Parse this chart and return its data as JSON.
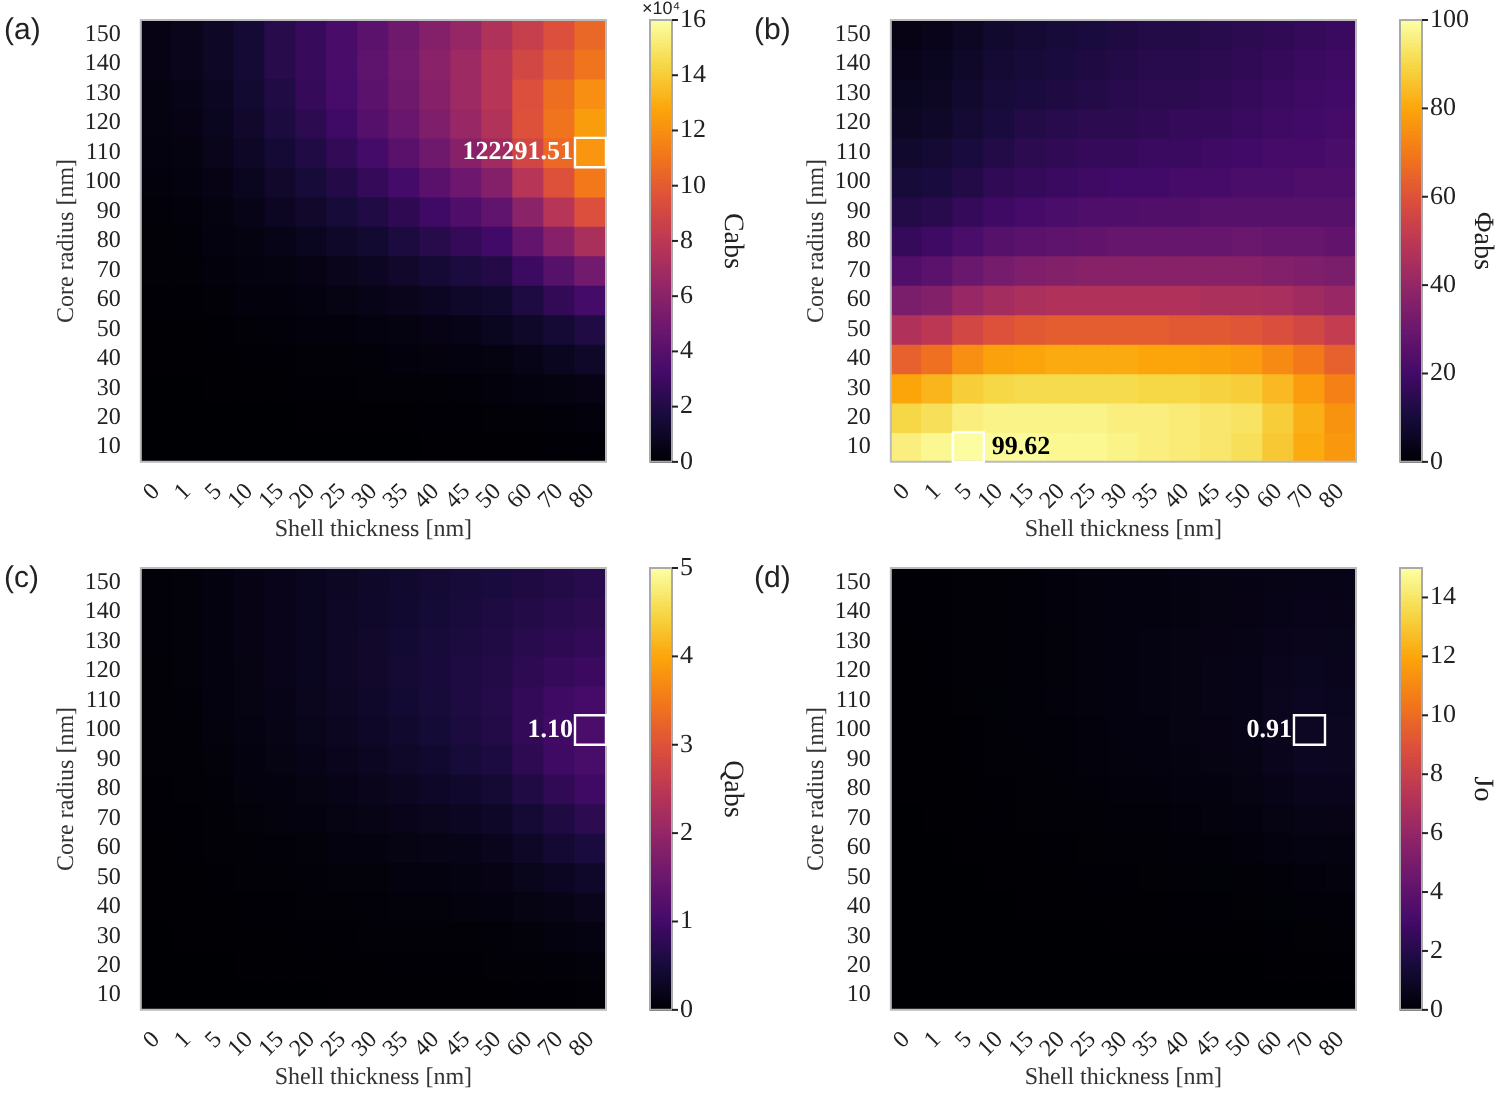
{
  "chart_data": [
    {
      "type": "heatmap",
      "title": "(a)",
      "xlabel": "Shell thickness [nm]",
      "ylabel": "Core radius [nm]",
      "clabel": "Cabs",
      "categories": [
        "0",
        "1",
        "5",
        "10",
        "15",
        "20",
        "25",
        "30",
        "35",
        "40",
        "45",
        "50",
        "60",
        "70",
        "80"
      ],
      "y_categories": [
        "150",
        "140",
        "130",
        "120",
        "110",
        "100",
        "90",
        "80",
        "70",
        "60",
        "50",
        "40",
        "30",
        "20",
        "10"
      ],
      "cells": [
        [
          0.5,
          0.7,
          1,
          1.5,
          2.2,
          2.8,
          3.5,
          4.2,
          5,
          5.8,
          6.5,
          7.5,
          8.5,
          9.5,
          10.5
        ],
        [
          0.5,
          0.7,
          1,
          1.5,
          2.2,
          2.8,
          3.5,
          4.3,
          5.1,
          6,
          6.8,
          7.8,
          9,
          10,
          11
        ],
        [
          0.4,
          0.6,
          0.9,
          1.4,
          2,
          2.7,
          3.4,
          4.2,
          5,
          5.9,
          6.8,
          7.8,
          9.5,
          10.8,
          12
        ],
        [
          0.4,
          0.5,
          0.8,
          1.2,
          1.8,
          2.4,
          3.1,
          3.9,
          4.7,
          5.6,
          6.6,
          7.6,
          9.6,
          11,
          12.5
        ],
        [
          0.3,
          0.4,
          0.7,
          1,
          1.5,
          2,
          2.6,
          3.3,
          4.1,
          5,
          5.9,
          6.9,
          8.9,
          10.6,
          12.229151
        ],
        [
          0.2,
          0.3,
          0.5,
          0.8,
          1.2,
          1.6,
          2.1,
          2.7,
          3.3,
          4.1,
          4.9,
          5.8,
          7.8,
          9.6,
          11.2
        ],
        [
          0.15,
          0.2,
          0.4,
          0.6,
          0.9,
          1.2,
          1.6,
          2,
          2.5,
          3.1,
          3.7,
          4.4,
          6.1,
          7.8,
          9.5
        ],
        [
          0.1,
          0.15,
          0.3,
          0.4,
          0.6,
          0.8,
          1.1,
          1.4,
          1.8,
          2.2,
          2.7,
          3.2,
          4.5,
          5.9,
          7.3
        ],
        [
          0.08,
          0.1,
          0.2,
          0.3,
          0.4,
          0.5,
          0.7,
          0.9,
          1.2,
          1.5,
          1.8,
          2.1,
          3,
          4,
          5.1
        ],
        [
          0.05,
          0.07,
          0.1,
          0.2,
          0.25,
          0.35,
          0.45,
          0.6,
          0.7,
          0.9,
          1.1,
          1.3,
          1.9,
          2.6,
          3.3
        ],
        [
          0.03,
          0.04,
          0.06,
          0.1,
          0.15,
          0.2,
          0.25,
          0.35,
          0.4,
          0.5,
          0.6,
          0.8,
          1.1,
          1.5,
          2
        ],
        [
          0.02,
          0.02,
          0.03,
          0.05,
          0.07,
          0.1,
          0.13,
          0.17,
          0.2,
          0.26,
          0.32,
          0.4,
          0.6,
          0.8,
          1.1
        ],
        [
          0.01,
          0.01,
          0.02,
          0.02,
          0.03,
          0.05,
          0.06,
          0.08,
          0.1,
          0.12,
          0.15,
          0.2,
          0.3,
          0.4,
          0.5
        ],
        [
          0,
          0,
          0.01,
          0.01,
          0.01,
          0.02,
          0.02,
          0.03,
          0.04,
          0.05,
          0.06,
          0.08,
          0.12,
          0.16,
          0.2
        ],
        [
          0,
          0,
          0,
          0,
          0,
          0.01,
          0.01,
          0.01,
          0.01,
          0.02,
          0.02,
          0.03,
          0.04,
          0.05,
          0.07
        ]
      ],
      "clim": [
        0,
        16
      ],
      "cticks": [
        0,
        2,
        4,
        6,
        8,
        10,
        12,
        14,
        16
      ],
      "annotations": [
        {
          "text": "122291.51",
          "x": "80",
          "y": "110"
        },
        "×10⁴"
      ]
    },
    {
      "type": "heatmap",
      "title": "(b)",
      "xlabel": "Shell thickness [nm]",
      "ylabel": "Core radius [nm]",
      "clabel": "Φabs",
      "categories": [
        "0",
        "1",
        "5",
        "10",
        "15",
        "20",
        "25",
        "30",
        "35",
        "40",
        "45",
        "50",
        "60",
        "70",
        "80"
      ],
      "y_categories": [
        "150",
        "140",
        "130",
        "120",
        "110",
        "100",
        "90",
        "80",
        "70",
        "60",
        "50",
        "40",
        "30",
        "20",
        "10"
      ],
      "cells": [
        [
          3,
          4,
          6,
          8,
          9,
          10,
          11,
          12,
          13,
          13,
          14,
          15,
          16,
          17,
          18
        ],
        [
          4,
          5,
          7,
          9,
          10,
          11,
          12,
          13,
          14,
          14,
          15,
          16,
          17,
          18,
          19
        ],
        [
          5,
          6,
          8,
          10,
          11,
          12,
          13,
          14,
          15,
          15,
          16,
          17,
          18,
          19,
          20
        ],
        [
          6,
          7,
          9,
          11,
          13,
          14,
          15,
          15,
          16,
          17,
          17,
          18,
          19,
          20,
          21
        ],
        [
          8,
          9,
          11,
          13,
          15,
          16,
          17,
          17,
          18,
          18,
          19,
          20,
          21,
          21,
          22
        ],
        [
          10,
          11,
          13,
          16,
          17,
          18,
          19,
          20,
          20,
          21,
          21,
          22,
          22,
          23,
          23
        ],
        [
          13,
          14,
          17,
          19,
          21,
          22,
          23,
          23,
          24,
          24,
          25,
          25,
          25,
          25,
          25
        ],
        [
          17,
          19,
          22,
          25,
          26,
          27,
          28,
          29,
          29,
          29,
          29,
          30,
          29,
          29,
          28
        ],
        [
          24,
          26,
          30,
          33,
          35,
          36,
          37,
          37,
          37,
          37,
          37,
          37,
          36,
          35,
          34
        ],
        [
          34,
          36,
          41,
          44,
          46,
          47,
          47,
          47,
          47,
          47,
          46,
          46,
          45,
          43,
          41
        ],
        [
          47,
          50,
          56,
          60,
          62,
          63,
          63,
          63,
          63,
          62,
          62,
          61,
          59,
          56,
          52
        ],
        [
          64,
          68,
          75,
          79,
          80,
          81,
          81,
          81,
          80,
          80,
          79,
          78,
          74,
          70,
          64
        ],
        [
          80,
          83,
          88,
          90,
          91,
          91,
          91,
          91,
          90,
          90,
          89,
          88,
          84,
          78,
          72
        ],
        [
          90,
          92,
          96,
          97,
          97,
          97,
          97,
          96,
          96,
          95,
          94,
          93,
          88,
          82,
          76
        ],
        [
          96,
          98,
          99.62,
          99,
          99,
          98,
          98,
          97,
          96,
          95,
          94,
          92,
          87,
          81,
          77
        ]
      ],
      "clim": [
        0,
        100
      ],
      "cticks": [
        0,
        20,
        40,
        60,
        80,
        100
      ],
      "annotations": [
        {
          "text": "99.62",
          "x": "5",
          "y": "10"
        }
      ]
    },
    {
      "type": "heatmap",
      "title": "(c)",
      "xlabel": "Shell thickness [nm]",
      "ylabel": "Core radius [nm]",
      "clabel": "Qabs",
      "categories": [
        "0",
        "1",
        "5",
        "10",
        "15",
        "20",
        "25",
        "30",
        "35",
        "40",
        "45",
        "50",
        "60",
        "70",
        "80"
      ],
      "y_categories": [
        "150",
        "140",
        "130",
        "120",
        "110",
        "100",
        "90",
        "80",
        "70",
        "60",
        "50",
        "40",
        "30",
        "20",
        "10"
      ],
      "cells": [
        [
          0.05,
          0.07,
          0.1,
          0.15,
          0.2,
          0.25,
          0.3,
          0.35,
          0.4,
          0.45,
          0.5,
          0.55,
          0.6,
          0.65,
          0.7
        ],
        [
          0.05,
          0.07,
          0.1,
          0.15,
          0.2,
          0.26,
          0.31,
          0.37,
          0.42,
          0.48,
          0.53,
          0.58,
          0.64,
          0.7,
          0.75
        ],
        [
          0.05,
          0.07,
          0.1,
          0.15,
          0.2,
          0.26,
          0.32,
          0.38,
          0.44,
          0.5,
          0.56,
          0.62,
          0.7,
          0.76,
          0.82
        ],
        [
          0.04,
          0.06,
          0.1,
          0.14,
          0.2,
          0.26,
          0.32,
          0.38,
          0.45,
          0.52,
          0.58,
          0.65,
          0.76,
          0.85,
          0.92
        ],
        [
          0.04,
          0.05,
          0.09,
          0.13,
          0.18,
          0.24,
          0.3,
          0.37,
          0.44,
          0.51,
          0.59,
          0.67,
          0.82,
          0.95,
          1.05
        ],
        [
          0.03,
          0.04,
          0.08,
          0.12,
          0.16,
          0.21,
          0.27,
          0.33,
          0.4,
          0.48,
          0.56,
          0.64,
          0.82,
          0.98,
          1.1
        ],
        [
          0.03,
          0.04,
          0.07,
          0.1,
          0.14,
          0.18,
          0.23,
          0.29,
          0.35,
          0.42,
          0.5,
          0.57,
          0.76,
          0.95,
          1.08
        ],
        [
          0.02,
          0.03,
          0.05,
          0.08,
          0.11,
          0.14,
          0.18,
          0.22,
          0.27,
          0.33,
          0.39,
          0.45,
          0.62,
          0.8,
          0.95
        ],
        [
          0.02,
          0.02,
          0.04,
          0.06,
          0.08,
          0.1,
          0.13,
          0.16,
          0.2,
          0.24,
          0.28,
          0.33,
          0.46,
          0.6,
          0.75
        ],
        [
          0.01,
          0.02,
          0.03,
          0.04,
          0.05,
          0.07,
          0.09,
          0.11,
          0.13,
          0.16,
          0.19,
          0.23,
          0.32,
          0.43,
          0.55
        ],
        [
          0.01,
          0.01,
          0.02,
          0.03,
          0.04,
          0.05,
          0.06,
          0.07,
          0.09,
          0.1,
          0.12,
          0.15,
          0.21,
          0.28,
          0.36
        ],
        [
          0.01,
          0.01,
          0.01,
          0.02,
          0.02,
          0.03,
          0.04,
          0.05,
          0.06,
          0.07,
          0.08,
          0.09,
          0.13,
          0.17,
          0.22
        ],
        [
          0,
          0.01,
          0.01,
          0.01,
          0.01,
          0.02,
          0.02,
          0.03,
          0.03,
          0.04,
          0.04,
          0.05,
          0.07,
          0.09,
          0.12
        ],
        [
          0,
          0,
          0,
          0.01,
          0.01,
          0.01,
          0.01,
          0.01,
          0.02,
          0.02,
          0.02,
          0.03,
          0.04,
          0.05,
          0.06
        ],
        [
          0,
          0,
          0,
          0,
          0,
          0,
          0.01,
          0.01,
          0.01,
          0.01,
          0.01,
          0.01,
          0.02,
          0.02,
          0.03
        ]
      ],
      "clim": [
        0,
        5
      ],
      "cticks": [
        0,
        1,
        2,
        3,
        4,
        5
      ],
      "annotations": [
        {
          "text": "1.10",
          "x": "80",
          "y": "100"
        }
      ]
    },
    {
      "type": "heatmap",
      "title": "(d)",
      "xlabel": "Shell thickness [nm]",
      "ylabel": "Core radius [nm]",
      "clabel": "Jo",
      "categories": [
        "0",
        "1",
        "5",
        "10",
        "15",
        "20",
        "25",
        "30",
        "35",
        "40",
        "45",
        "50",
        "60",
        "70",
        "80"
      ],
      "y_categories": [
        "150",
        "140",
        "130",
        "120",
        "110",
        "100",
        "90",
        "80",
        "70",
        "60",
        "50",
        "40",
        "30",
        "20",
        "10"
      ],
      "cells": [
        [
          0.05,
          0.06,
          0.08,
          0.12,
          0.16,
          0.2,
          0.24,
          0.28,
          0.32,
          0.36,
          0.4,
          0.44,
          0.5,
          0.55,
          0.55
        ],
        [
          0.05,
          0.06,
          0.08,
          0.12,
          0.16,
          0.2,
          0.25,
          0.29,
          0.34,
          0.38,
          0.42,
          0.47,
          0.54,
          0.6,
          0.58
        ],
        [
          0.04,
          0.06,
          0.08,
          0.12,
          0.16,
          0.21,
          0.26,
          0.31,
          0.36,
          0.41,
          0.46,
          0.51,
          0.6,
          0.66,
          0.63
        ],
        [
          0.04,
          0.05,
          0.08,
          0.11,
          0.16,
          0.21,
          0.26,
          0.31,
          0.37,
          0.43,
          0.49,
          0.55,
          0.67,
          0.75,
          0.7
        ],
        [
          0.03,
          0.04,
          0.07,
          0.1,
          0.15,
          0.19,
          0.24,
          0.3,
          0.36,
          0.43,
          0.5,
          0.57,
          0.72,
          0.84,
          0.78
        ],
        [
          0.03,
          0.04,
          0.06,
          0.09,
          0.13,
          0.17,
          0.22,
          0.27,
          0.33,
          0.4,
          0.47,
          0.55,
          0.73,
          0.91,
          0.82
        ],
        [
          0.02,
          0.03,
          0.05,
          0.08,
          0.11,
          0.15,
          0.19,
          0.24,
          0.29,
          0.35,
          0.42,
          0.49,
          0.67,
          0.85,
          0.8
        ],
        [
          0.02,
          0.02,
          0.04,
          0.06,
          0.09,
          0.12,
          0.15,
          0.19,
          0.23,
          0.28,
          0.33,
          0.39,
          0.54,
          0.7,
          0.68
        ],
        [
          0.01,
          0.02,
          0.03,
          0.05,
          0.07,
          0.09,
          0.11,
          0.14,
          0.17,
          0.2,
          0.24,
          0.28,
          0.39,
          0.51,
          0.52
        ],
        [
          0.01,
          0.01,
          0.02,
          0.03,
          0.04,
          0.06,
          0.07,
          0.09,
          0.11,
          0.13,
          0.16,
          0.19,
          0.27,
          0.36,
          0.38
        ],
        [
          0.01,
          0.01,
          0.01,
          0.02,
          0.03,
          0.04,
          0.05,
          0.06,
          0.07,
          0.08,
          0.1,
          0.12,
          0.17,
          0.23,
          0.25
        ],
        [
          0,
          0.01,
          0.01,
          0.01,
          0.02,
          0.02,
          0.03,
          0.03,
          0.04,
          0.05,
          0.06,
          0.07,
          0.1,
          0.13,
          0.15
        ],
        [
          0,
          0,
          0,
          0.01,
          0.01,
          0.01,
          0.01,
          0.02,
          0.02,
          0.02,
          0.03,
          0.03,
          0.05,
          0.07,
          0.08
        ],
        [
          0,
          0,
          0,
          0,
          0,
          0,
          0.01,
          0.01,
          0.01,
          0.01,
          0.01,
          0.01,
          0.02,
          0.03,
          0.04
        ],
        [
          0,
          0,
          0,
          0,
          0,
          0,
          0,
          0,
          0,
          0,
          0,
          0,
          0.01,
          0.01,
          0.01
        ]
      ],
      "clim": [
        0,
        15
      ],
      "cticks": [
        0,
        2,
        4,
        6,
        8,
        10,
        12,
        14
      ],
      "annotations": [
        {
          "text": "0.91",
          "x": "70",
          "y": "100"
        }
      ]
    }
  ]
}
